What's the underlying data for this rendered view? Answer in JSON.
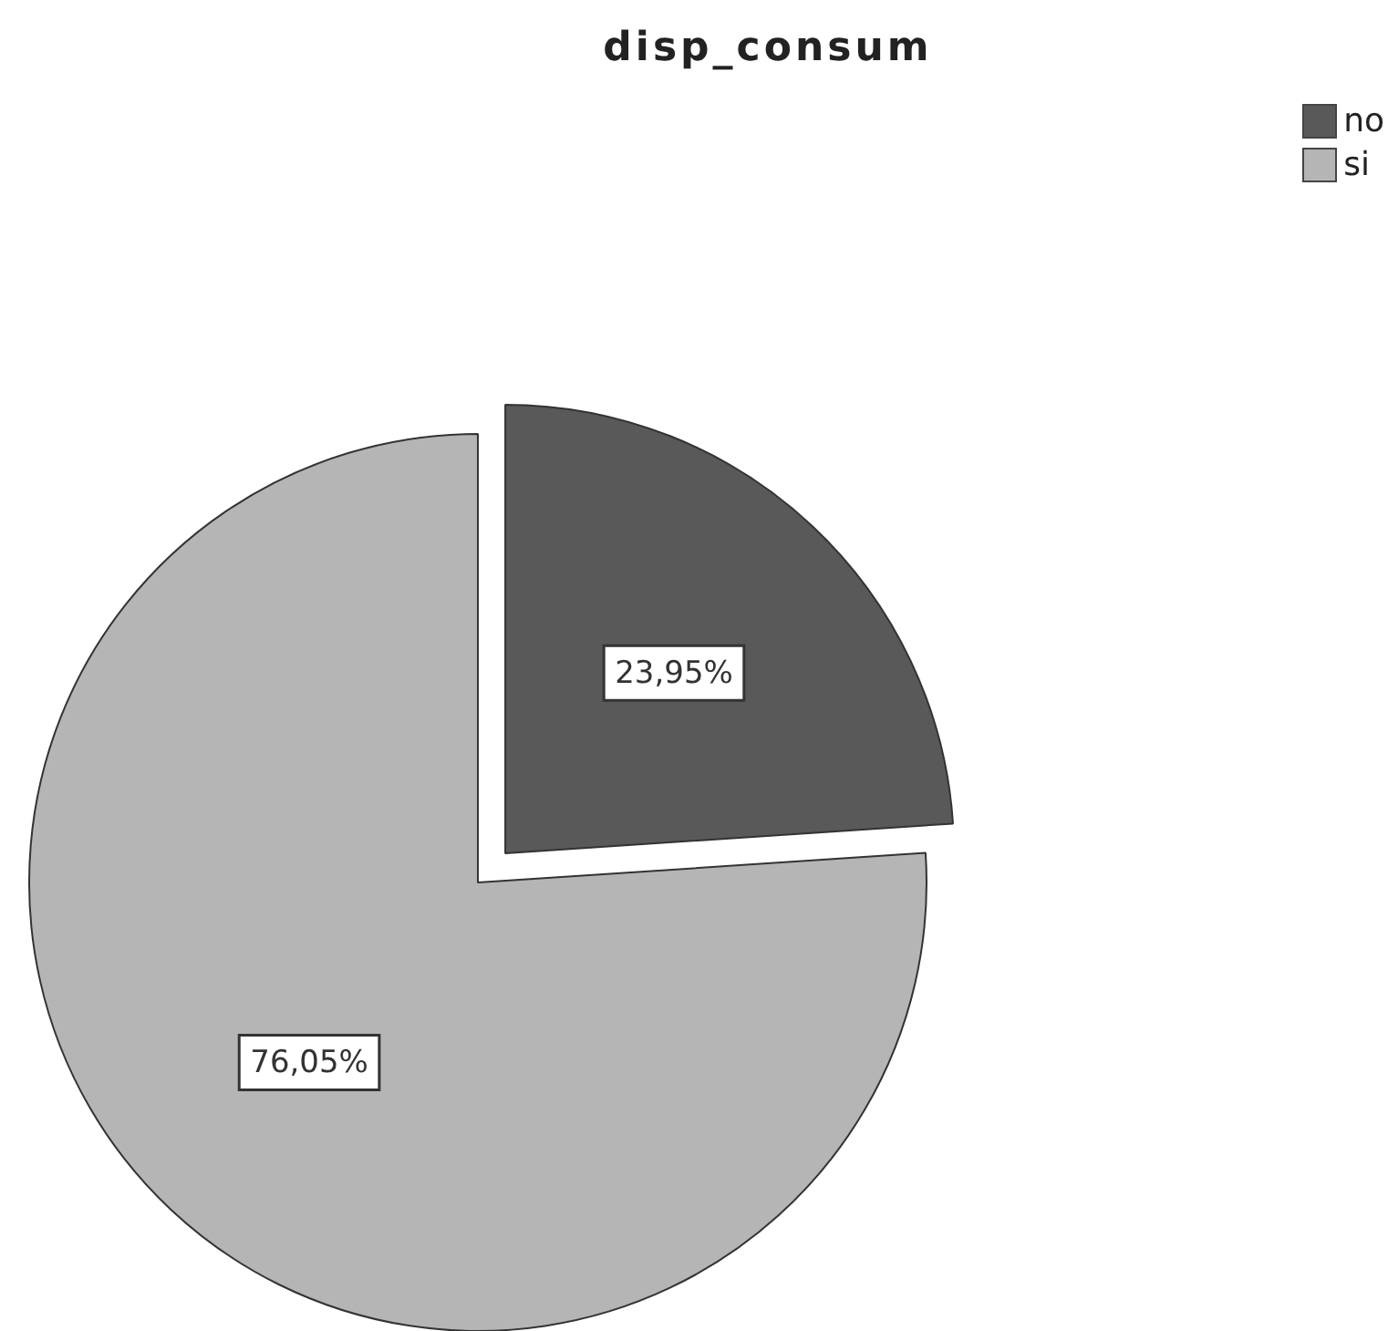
{
  "chart_data": {
    "type": "pie",
    "title": "disp_consum",
    "categories": [
      "no",
      "si"
    ],
    "values": [
      23.95,
      76.05
    ],
    "colors": [
      "#595959",
      "#b5b5b5"
    ],
    "value_labels": [
      "23,95%",
      "76,05%"
    ],
    "legend": "top right"
  }
}
